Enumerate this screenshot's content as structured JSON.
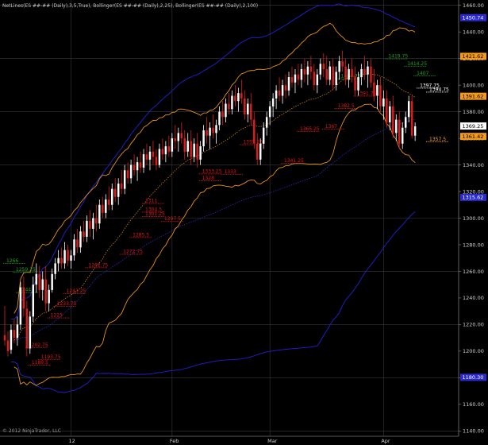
{
  "header_text": "NetLines(ES ##-## (Daily),3,5,True), Bollinger(ES ##-## (Daily),2,25), Bollinger(ES ##-## (Daily),2,100)",
  "copyright": "© 2012 NinjaTrader, LLC",
  "colors": {
    "background": "#000000",
    "grid": "#3a3a3a",
    "candle_up": "#ffffff",
    "candle_down": "#e01b1b",
    "bb25": "#e8901a",
    "bb25_mid": "#e8901a",
    "bb100": "#2020d8",
    "bb100_mid": "#2f2fe0",
    "netline_red": "#e21818",
    "netline_green": "#1fa01f",
    "netline_white": "#ffffff",
    "netline_orange": "#f5a623",
    "tag_blue_bg": "#2a2ad0",
    "tag_orange_bg": "#f39a1a"
  },
  "chart_data": {
    "type": "candlestick",
    "symbol": "ES ##-##",
    "timeframe": "Daily",
    "y_axis": {
      "ylim": [
        1136,
        1464
      ],
      "ticks": [
        1140,
        1160,
        1180,
        1200,
        1220,
        1240,
        1260,
        1280,
        1300,
        1320,
        1340,
        1360,
        1380,
        1400,
        1420,
        1440,
        1460
      ],
      "position": "right"
    },
    "x_axis": {
      "labels": [
        {
          "label": "12",
          "bar": 21
        },
        {
          "label": "Feb",
          "bar": 53
        },
        {
          "label": "Mar",
          "bar": 84
        },
        {
          "label": "Apr",
          "bar": 120
        }
      ],
      "bar_count": 137
    },
    "price_tags": [
      {
        "text": "1450.74",
        "value": 1450.74,
        "color": "blue"
      },
      {
        "text": "1421.62",
        "value": 1421.62,
        "color": "orange"
      },
      {
        "text": "1391.62",
        "value": 1391.62,
        "color": "orange"
      },
      {
        "text": "1369.25",
        "value": 1369.25,
        "color": "white"
      },
      {
        "text": "1361.42",
        "value": 1361.42,
        "color": "orange"
      },
      {
        "text": "1315.62",
        "value": 1315.62,
        "color": "blue"
      },
      {
        "text": "1180.30",
        "value": 1180.3,
        "color": "blue"
      }
    ],
    "candles": [
      [
        1212,
        1234,
        1204,
        1208
      ],
      [
        1208,
        1215,
        1196,
        1200
      ],
      [
        1201,
        1220,
        1198,
        1216
      ],
      [
        1216,
        1224,
        1206,
        1210
      ],
      [
        1210,
        1226,
        1204,
        1220
      ],
      [
        1220,
        1252,
        1216,
        1248
      ],
      [
        1248,
        1256,
        1226,
        1232
      ],
      [
        1232,
        1238,
        1196,
        1202
      ],
      [
        1202,
        1230,
        1198,
        1226
      ],
      [
        1226,
        1256,
        1222,
        1250
      ],
      [
        1250,
        1266,
        1244,
        1258
      ],
      [
        1258,
        1264,
        1240,
        1246
      ],
      [
        1246,
        1260,
        1238,
        1254
      ],
      [
        1254,
        1264,
        1230,
        1236
      ],
      [
        1236,
        1250,
        1230,
        1246
      ],
      [
        1246,
        1262,
        1244,
        1258
      ],
      [
        1258,
        1270,
        1254,
        1266
      ],
      [
        1266,
        1276,
        1260,
        1270
      ],
      [
        1270,
        1278,
        1262,
        1266
      ],
      [
        1266,
        1282,
        1262,
        1276
      ],
      [
        1276,
        1280,
        1264,
        1268
      ],
      [
        1268,
        1276,
        1262,
        1272
      ],
      [
        1272,
        1288,
        1268,
        1284
      ],
      [
        1284,
        1292,
        1274,
        1278
      ],
      [
        1278,
        1294,
        1274,
        1290
      ],
      [
        1290,
        1298,
        1282,
        1286
      ],
      [
        1286,
        1302,
        1282,
        1298
      ],
      [
        1298,
        1306,
        1286,
        1292
      ],
      [
        1292,
        1304,
        1284,
        1300
      ],
      [
        1300,
        1310,
        1290,
        1296
      ],
      [
        1296,
        1314,
        1292,
        1310
      ],
      [
        1310,
        1316,
        1300,
        1304
      ],
      [
        1304,
        1318,
        1300,
        1314
      ],
      [
        1314,
        1324,
        1306,
        1310
      ],
      [
        1310,
        1326,
        1306,
        1322
      ],
      [
        1322,
        1330,
        1312,
        1316
      ],
      [
        1316,
        1330,
        1310,
        1326
      ],
      [
        1326,
        1336,
        1318,
        1322
      ],
      [
        1322,
        1340,
        1318,
        1336
      ],
      [
        1336,
        1342,
        1326,
        1330
      ],
      [
        1330,
        1344,
        1326,
        1340
      ],
      [
        1340,
        1348,
        1332,
        1336
      ],
      [
        1336,
        1346,
        1328,
        1342
      ],
      [
        1342,
        1350,
        1334,
        1338
      ],
      [
        1338,
        1352,
        1334,
        1348
      ],
      [
        1348,
        1356,
        1340,
        1344
      ],
      [
        1344,
        1354,
        1336,
        1350
      ],
      [
        1350,
        1358,
        1340,
        1346
      ],
      [
        1346,
        1352,
        1336,
        1340
      ],
      [
        1340,
        1356,
        1338,
        1352
      ],
      [
        1352,
        1360,
        1344,
        1348
      ],
      [
        1348,
        1358,
        1342,
        1354
      ],
      [
        1354,
        1362,
        1346,
        1350
      ],
      [
        1350,
        1364,
        1346,
        1360
      ],
      [
        1360,
        1370,
        1352,
        1358
      ],
      [
        1358,
        1368,
        1350,
        1364
      ],
      [
        1364,
        1372,
        1356,
        1360
      ],
      [
        1360,
        1366,
        1344,
        1350
      ],
      [
        1350,
        1364,
        1346,
        1358
      ],
      [
        1358,
        1366,
        1340,
        1346
      ],
      [
        1346,
        1360,
        1342,
        1356
      ],
      [
        1356,
        1364,
        1338,
        1344
      ],
      [
        1344,
        1358,
        1340,
        1354
      ],
      [
        1354,
        1370,
        1350,
        1366
      ],
      [
        1366,
        1376,
        1356,
        1362
      ],
      [
        1362,
        1372,
        1352,
        1368
      ],
      [
        1368,
        1378,
        1360,
        1364
      ],
      [
        1364,
        1374,
        1356,
        1370
      ],
      [
        1370,
        1384,
        1366,
        1380
      ],
      [
        1380,
        1388,
        1370,
        1376
      ],
      [
        1376,
        1390,
        1372,
        1386
      ],
      [
        1386,
        1394,
        1378,
        1382
      ],
      [
        1382,
        1396,
        1378,
        1392
      ],
      [
        1392,
        1400,
        1384,
        1388
      ],
      [
        1388,
        1398,
        1380,
        1394
      ],
      [
        1394,
        1404,
        1386,
        1390
      ],
      [
        1390,
        1396,
        1374,
        1378
      ],
      [
        1378,
        1390,
        1372,
        1386
      ],
      [
        1386,
        1394,
        1370,
        1374
      ],
      [
        1374,
        1380,
        1352,
        1356
      ],
      [
        1356,
        1364,
        1340,
        1344
      ],
      [
        1344,
        1360,
        1340,
        1356
      ],
      [
        1356,
        1372,
        1352,
        1368
      ],
      [
        1368,
        1380,
        1362,
        1376
      ],
      [
        1376,
        1388,
        1370,
        1384
      ],
      [
        1384,
        1394,
        1376,
        1390
      ],
      [
        1390,
        1400,
        1382,
        1396
      ],
      [
        1396,
        1406,
        1388,
        1392
      ],
      [
        1392,
        1404,
        1386,
        1400
      ],
      [
        1400,
        1408,
        1390,
        1396
      ],
      [
        1396,
        1410,
        1392,
        1406
      ],
      [
        1406,
        1414,
        1398,
        1402
      ],
      [
        1402,
        1412,
        1394,
        1408
      ],
      [
        1408,
        1416,
        1400,
        1404
      ],
      [
        1404,
        1416,
        1398,
        1412
      ],
      [
        1412,
        1420,
        1402,
        1408
      ],
      [
        1408,
        1418,
        1400,
        1414
      ],
      [
        1414,
        1422,
        1404,
        1410
      ],
      [
        1410,
        1416,
        1396,
        1400
      ],
      [
        1400,
        1412,
        1394,
        1408
      ],
      [
        1408,
        1420,
        1404,
        1416
      ],
      [
        1416,
        1424,
        1406,
        1412
      ],
      [
        1412,
        1422,
        1400,
        1404
      ],
      [
        1404,
        1418,
        1400,
        1414
      ],
      [
        1414,
        1420,
        1396,
        1400
      ],
      [
        1400,
        1414,
        1396,
        1410
      ],
      [
        1410,
        1422,
        1404,
        1418
      ],
      [
        1418,
        1426,
        1410,
        1414
      ],
      [
        1414,
        1420,
        1400,
        1404
      ],
      [
        1404,
        1416,
        1398,
        1412
      ],
      [
        1412,
        1420,
        1402,
        1406
      ],
      [
        1406,
        1414,
        1392,
        1396
      ],
      [
        1396,
        1410,
        1392,
        1406
      ],
      [
        1406,
        1416,
        1400,
        1412
      ],
      [
        1412,
        1422,
        1404,
        1408
      ],
      [
        1408,
        1418,
        1398,
        1414
      ],
      [
        1414,
        1420,
        1398,
        1402
      ],
      [
        1402,
        1412,
        1388,
        1392
      ],
      [
        1392,
        1404,
        1382,
        1400
      ],
      [
        1400,
        1406,
        1380,
        1384
      ],
      [
        1384,
        1396,
        1374,
        1390
      ],
      [
        1390,
        1396,
        1368,
        1372
      ],
      [
        1372,
        1388,
        1366,
        1384
      ],
      [
        1384,
        1392,
        1360,
        1364
      ],
      [
        1364,
        1378,
        1358,
        1374
      ],
      [
        1374,
        1380,
        1352,
        1356
      ],
      [
        1356,
        1372,
        1352,
        1368
      ],
      [
        1368,
        1380,
        1364,
        1376
      ],
      [
        1376,
        1392,
        1372,
        1388
      ],
      [
        1388,
        1392,
        1360,
        1362
      ],
      [
        1362,
        1372,
        1358,
        1369
      ]
    ],
    "netlines": [
      {
        "text": "1266",
        "value": 1266,
        "bar": 0,
        "color": "green"
      },
      {
        "text": "1259.25",
        "value": 1259.25,
        "bar": 3,
        "color": "green"
      },
      {
        "text": "1244",
        "value": 1244,
        "bar": 4,
        "color": "green"
      },
      {
        "text": "1202.75",
        "value": 1202.75,
        "bar": 7,
        "color": "red"
      },
      {
        "text": "1193.75",
        "value": 1193.75,
        "bar": 11,
        "color": "red"
      },
      {
        "text": "1189.5",
        "value": 1189.5,
        "bar": 8,
        "color": "red"
      },
      {
        "text": "1225",
        "value": 1225,
        "bar": 14,
        "color": "red"
      },
      {
        "text": "1233.75",
        "value": 1233.75,
        "bar": 16,
        "color": "red"
      },
      {
        "text": "1243.25",
        "value": 1243.25,
        "bar": 19,
        "color": "red"
      },
      {
        "text": "1262.75",
        "value": 1262.75,
        "bar": 26,
        "color": "red"
      },
      {
        "text": "1272.75",
        "value": 1272.75,
        "bar": 37,
        "color": "red"
      },
      {
        "text": "1285.5",
        "value": 1285.5,
        "bar": 40,
        "color": "red"
      },
      {
        "text": "1297.5",
        "value": 1297.5,
        "bar": 50,
        "color": "red"
      },
      {
        "text": "1301.25",
        "value": 1301.25,
        "bar": 44,
        "color": "red"
      },
      {
        "text": "1304.5",
        "value": 1304.5,
        "bar": 44,
        "color": "red"
      },
      {
        "text": "1311",
        "value": 1311,
        "bar": 44,
        "color": "red"
      },
      {
        "text": "1328",
        "value": 1328,
        "bar": 62,
        "color": "red"
      },
      {
        "text": "1333.25",
        "value": 1333.25,
        "bar": 62,
        "color": "red"
      },
      {
        "text": "1333",
        "value": 1333,
        "bar": 69,
        "color": "red"
      },
      {
        "text": "1341.25",
        "value": 1341.25,
        "bar": 88,
        "color": "red"
      },
      {
        "text": "1355.25",
        "value": 1355.25,
        "bar": 75,
        "color": "red"
      },
      {
        "text": "1365.25",
        "value": 1365.25,
        "bar": 93,
        "color": "red"
      },
      {
        "text": "1367",
        "value": 1367,
        "bar": 101,
        "color": "red"
      },
      {
        "text": "1382.5",
        "value": 1382.5,
        "bar": 105,
        "color": "red"
      },
      {
        "text": "1391.75",
        "value": 1391.75,
        "bar": 111,
        "color": "red"
      },
      {
        "text": "1404.75",
        "value": 1404.75,
        "bar": 106,
        "color": "green"
      },
      {
        "text": "1419.75",
        "value": 1419.75,
        "bar": 121,
        "color": "green"
      },
      {
        "text": "1414.25",
        "value": 1414.25,
        "bar": 127,
        "color": "green"
      },
      {
        "text": "1407",
        "value": 1407,
        "bar": 130,
        "color": "green"
      },
      {
        "text": "1397.75",
        "value": 1397.75,
        "bar": 131,
        "color": "white"
      },
      {
        "text": "1394.75",
        "value": 1394.75,
        "bar": 134,
        "color": "white"
      },
      {
        "text": "1357.5",
        "value": 1357.5,
        "bar": 134,
        "color": "orange"
      }
    ]
  }
}
